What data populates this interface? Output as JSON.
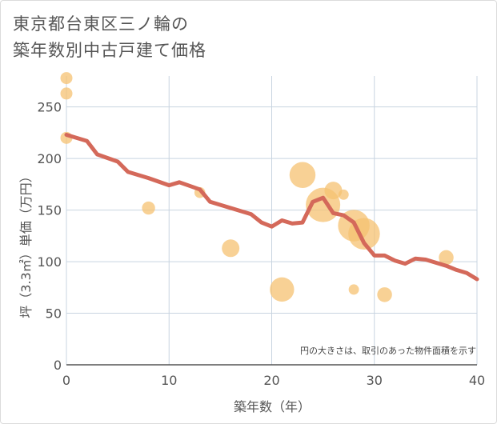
{
  "title_line1": "東京都台東区三ノ輪の",
  "title_line2": "築年数別中古戸建て価格",
  "note": "円の大きさは、取引のあった物件面積を示す",
  "colors": {
    "line": "#d4695a",
    "bubble": "#f5c272",
    "grid": "#c8d4e0"
  },
  "chart_data": {
    "type": "scatter",
    "xlabel": "築年数（年）",
    "ylabel": "坪（3.3㎡）単価（万円）",
    "xlim": [
      0,
      40
    ],
    "ylim": [
      0,
      280
    ],
    "xticks": [
      0,
      10,
      20,
      30,
      40
    ],
    "yticks": [
      0,
      50,
      100,
      150,
      200,
      250
    ],
    "bubbles": [
      {
        "x": 0,
        "y": 278,
        "size": 1
      },
      {
        "x": 0,
        "y": 263,
        "size": 1
      },
      {
        "x": 0,
        "y": 220,
        "size": 1
      },
      {
        "x": 8,
        "y": 152,
        "size": 1.2
      },
      {
        "x": 13,
        "y": 167,
        "size": 0.8
      },
      {
        "x": 16,
        "y": 113,
        "size": 2
      },
      {
        "x": 21,
        "y": 73,
        "size": 3.2
      },
      {
        "x": 23,
        "y": 184,
        "size": 3.5
      },
      {
        "x": 25,
        "y": 155,
        "size": 5
      },
      {
        "x": 26,
        "y": 169,
        "size": 2
      },
      {
        "x": 27,
        "y": 165,
        "size": 0.7
      },
      {
        "x": 28,
        "y": 73,
        "size": 0.7
      },
      {
        "x": 28,
        "y": 135,
        "size": 4.5
      },
      {
        "x": 29,
        "y": 127,
        "size": 4.5
      },
      {
        "x": 31,
        "y": 68,
        "size": 1.5
      },
      {
        "x": 37,
        "y": 104,
        "size": 1.5
      }
    ],
    "trend": {
      "x": [
        0,
        2,
        3,
        5,
        6,
        8,
        10,
        11,
        13,
        14,
        16,
        18,
        19,
        20,
        21,
        22,
        23,
        24,
        25,
        26,
        27,
        28,
        29,
        30,
        31,
        32,
        33,
        34,
        35,
        36,
        37,
        38,
        39,
        40
      ],
      "y": [
        223,
        217,
        204,
        197,
        187,
        181,
        174,
        177,
        170,
        158,
        152,
        146,
        138,
        134,
        140,
        137,
        138,
        158,
        162,
        147,
        145,
        138,
        118,
        106,
        106,
        101,
        98,
        103,
        102,
        99,
        96,
        92,
        89,
        83
      ]
    }
  }
}
